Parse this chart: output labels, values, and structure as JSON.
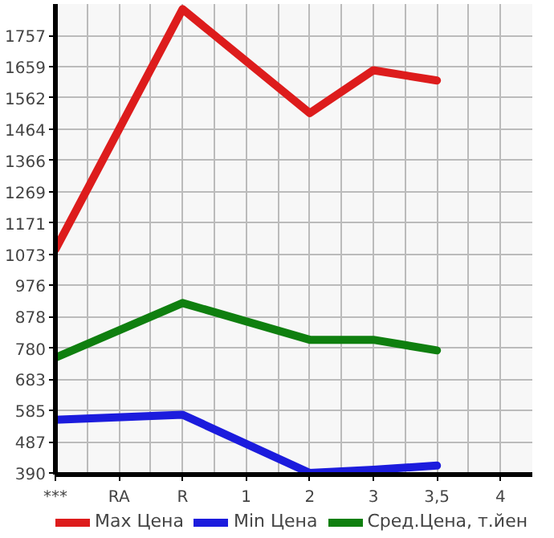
{
  "chart_data": {
    "type": "line",
    "categories": [
      "***",
      "RA",
      "R",
      "1",
      "2",
      "3",
      "3,5",
      "4"
    ],
    "series": [
      {
        "name": "Max Цена",
        "color": "#dd1c1c",
        "values": [
          1088,
          null,
          1839,
          null,
          1514,
          1648,
          1616,
          null
        ]
      },
      {
        "name": "Min Цена",
        "color": "#1c1cdd",
        "values": [
          556,
          null,
          572,
          null,
          390,
          400,
          413,
          null
        ]
      },
      {
        "name": "Сред.Цена, т.йен",
        "color": "#0f7f0f",
        "values": [
          750,
          null,
          921,
          null,
          806,
          806,
          773,
          null
        ]
      }
    ],
    "ylim": [
      385,
      1855
    ],
    "yticks": [
      390,
      487,
      585,
      683,
      780,
      878,
      976,
      1073,
      1171,
      1269,
      1366,
      1464,
      1562,
      1659,
      1757
    ],
    "grid": true,
    "legend": "bottom",
    "marker": "none",
    "line_style": "solid"
  }
}
